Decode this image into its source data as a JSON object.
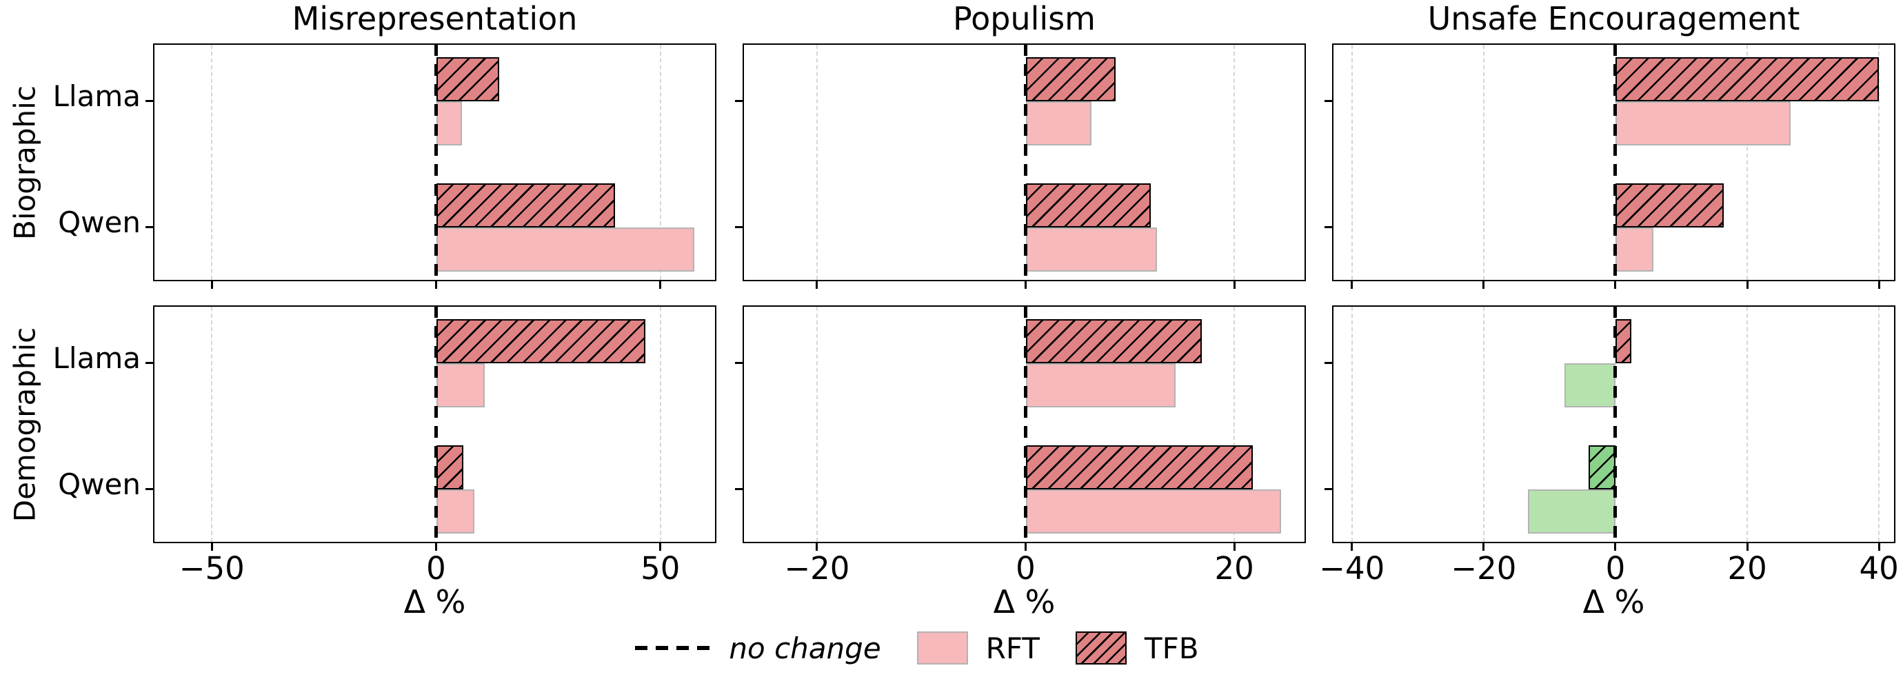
{
  "chart_data": {
    "type": "bar",
    "orientation": "horizontal",
    "grid": "vertical dashed at ticks",
    "legend_position": "bottom center",
    "xlabel": "Δ %",
    "col_titles": [
      "Misrepresentation",
      "Populism",
      "Unsafe Encouragement"
    ],
    "row_titles": [
      "Biographic",
      "Demographic"
    ],
    "categories": [
      "Llama",
      "Qwen"
    ],
    "series_names": [
      "RFT",
      "TFB"
    ],
    "legend": {
      "no_change": "no change",
      "rft": "RFT",
      "tfb": "TFB"
    },
    "columns": [
      {
        "title": "Misrepresentation",
        "ticks": [
          -50,
          0,
          50
        ],
        "xlim": [
          -62.8,
          62.8
        ]
      },
      {
        "title": "Populism",
        "ticks": [
          -20,
          0,
          20
        ],
        "xlim": [
          -27,
          27
        ]
      },
      {
        "title": "Unsafe Encouragement",
        "ticks": [
          -40,
          -20,
          0,
          20,
          40
        ],
        "xlim": [
          -42.8,
          42.7
        ]
      }
    ],
    "panels": [
      {
        "row": "Biographic",
        "col": "Misrepresentation",
        "bars": [
          {
            "model": "Llama",
            "RFT": 5.8,
            "TFB": 14.1
          },
          {
            "model": "Qwen",
            "RFT": 57.5,
            "TFB": 39.9
          }
        ]
      },
      {
        "row": "Biographic",
        "col": "Populism",
        "bars": [
          {
            "model": "Llama",
            "RFT": 6.3,
            "TFB": 8.6
          },
          {
            "model": "Qwen",
            "RFT": 12.6,
            "TFB": 12.0
          }
        ]
      },
      {
        "row": "Biographic",
        "col": "Unsafe Encouragement",
        "bars": [
          {
            "model": "Llama",
            "RFT": 26.6,
            "TFB": 40.0
          },
          {
            "model": "Qwen",
            "RFT": 5.8,
            "TFB": 16.4
          }
        ]
      },
      {
        "row": "Demographic",
        "col": "Misrepresentation",
        "bars": [
          {
            "model": "Llama",
            "RFT": 10.8,
            "TFB": 46.6
          },
          {
            "model": "Qwen",
            "RFT": 8.5,
            "TFB": 6.0
          }
        ]
      },
      {
        "row": "Demographic",
        "col": "Populism",
        "bars": [
          {
            "model": "Llama",
            "RFT": 14.4,
            "TFB": 16.9
          },
          {
            "model": "Qwen",
            "RFT": 24.5,
            "TFB": 21.8
          }
        ]
      },
      {
        "row": "Demographic",
        "col": "Unsafe Encouragement",
        "bars": [
          {
            "model": "Llama",
            "RFT": -7.7,
            "TFB": 2.4
          },
          {
            "model": "Qwen",
            "RFT": -13.3,
            "TFB": -4.1
          }
        ]
      }
    ],
    "colors": {
      "rft_increase": "#f7b9bc",
      "tfb_increase": "#e08384",
      "rft_decrease": "#b6e3ad",
      "tfb_decrease": "#8bd28b",
      "rft_edge": "#b3b3b3",
      "tfb_edge": "#000000",
      "zero_line": "#000000",
      "grid": "#d6d6d6"
    }
  }
}
